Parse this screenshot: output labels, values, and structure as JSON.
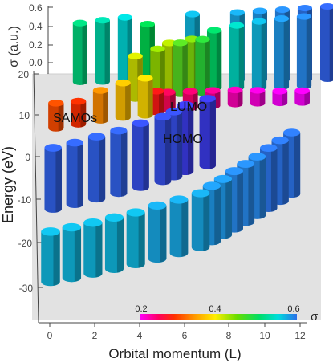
{
  "chart_data": {
    "type": "bar3d",
    "xlabel": "Orbital momentum (L)",
    "ylabel": "Energy (eV)",
    "zlabel": "σ (a.u.)",
    "xticks": [
      0,
      2,
      4,
      6,
      8,
      10,
      12
    ],
    "yticks": [
      -30,
      -20,
      -10,
      0,
      10,
      20
    ],
    "zticks": [
      0.0,
      0.2,
      0.4,
      0.6
    ],
    "xlim": [
      -0.5,
      12.5
    ],
    "ylim": [
      -36,
      21
    ],
    "zlim": [
      0,
      0.65
    ],
    "annotations": [
      "SAMOs",
      "LUMO",
      "HOMO"
    ],
    "colorbar": {
      "label": "σ",
      "ticks": [
        0.2,
        0.4,
        0.6
      ],
      "range": [
        0.1,
        0.6
      ]
    },
    "points": [
      [
        0,
        -30.5,
        0.55
      ],
      [
        1,
        -29.5,
        0.55
      ],
      [
        2,
        -28.4,
        0.55
      ],
      [
        3,
        -27.2,
        0.55
      ],
      [
        4,
        -26.0,
        0.55
      ],
      [
        5,
        -24.6,
        0.56
      ],
      [
        6,
        -23.2,
        0.56
      ],
      [
        7,
        -21.7,
        0.56
      ],
      [
        7.5,
        -20.2,
        0.57
      ],
      [
        8,
        -18.6,
        0.57
      ],
      [
        8.5,
        -17.0,
        0.58
      ],
      [
        9,
        -15.3,
        0.58
      ],
      [
        9.5,
        -13.6,
        0.58
      ],
      [
        10,
        -11.8,
        0.59
      ],
      [
        10.5,
        -10.0,
        0.59
      ],
      [
        11,
        -8.2,
        0.59
      ],
      [
        0,
        -12.0,
        0.6
      ],
      [
        1,
        -10.8,
        0.6
      ],
      [
        2,
        -9.4,
        0.6
      ],
      [
        3,
        -8.0,
        0.6
      ],
      [
        4,
        -6.5,
        0.61
      ],
      [
        5,
        -5.0,
        0.61
      ],
      [
        5.5,
        -3.8,
        0.61
      ],
      [
        6,
        -2.5,
        0.62
      ],
      [
        7,
        -1.0,
        0.62
      ],
      [
        0,
        8.5,
        0.22
      ],
      [
        1,
        9.5,
        0.2
      ],
      [
        2,
        10.5,
        0.26
      ],
      [
        3,
        11.2,
        0.3
      ],
      [
        4,
        11.8,
        0.32
      ],
      [
        4.5,
        12.6,
        0.18
      ],
      [
        5,
        13.2,
        0.15
      ],
      [
        6,
        13.7,
        0.14
      ],
      [
        7,
        14.2,
        0.13
      ],
      [
        8,
        14.6,
        0.12
      ],
      [
        9,
        14.8,
        0.11
      ],
      [
        10,
        14.9,
        0.1
      ],
      [
        11,
        15.0,
        0.1
      ],
      [
        3.5,
        16.0,
        0.36
      ],
      [
        4.5,
        16.6,
        0.4
      ],
      [
        5.5,
        17.2,
        0.43
      ],
      [
        6.5,
        17.5,
        0.45
      ],
      [
        5,
        18.6,
        0.38
      ],
      [
        6,
        18.7,
        0.41
      ],
      [
        7,
        18.8,
        0.48
      ],
      [
        8,
        18.8,
        0.52
      ],
      [
        9,
        18.9,
        0.55
      ],
      [
        10,
        19.0,
        0.57
      ],
      [
        11,
        19.2,
        0.58
      ],
      [
        1,
        20.2,
        0.49
      ],
      [
        2,
        20.3,
        0.51
      ],
      [
        3,
        20.4,
        0.53
      ],
      [
        4,
        20.5,
        0.47
      ],
      [
        6,
        20.6,
        0.55
      ],
      [
        8,
        20.7,
        0.56
      ],
      [
        9,
        20.8,
        0.57
      ],
      [
        10,
        20.8,
        0.58
      ],
      [
        11,
        20.9,
        0.59
      ],
      [
        12,
        21.0,
        0.6
      ]
    ]
  },
  "ui": {
    "xlabel": "Orbital momentum (L)",
    "ylabel": "Energy (eV)",
    "zlabel": "σ (a.u.)",
    "samos": "SAMOs",
    "lumo": "LUMO",
    "homo": "HOMO",
    "cb_sigma": "σ",
    "cb_t1": "0.2",
    "cb_t2": "0.4",
    "cb_t3": "0.6",
    "x0": "0",
    "x2": "2",
    "x4": "4",
    "x6": "6",
    "x8": "8",
    "x10": "10",
    "x12": "12",
    "ym30": "-30",
    "ym20": "-20",
    "ym10": "-10",
    "y0": "0",
    "y10": "10",
    "y20": "20",
    "z00": "0.0",
    "z02": "0.2",
    "z04": "0.4",
    "z06": "0.6"
  }
}
